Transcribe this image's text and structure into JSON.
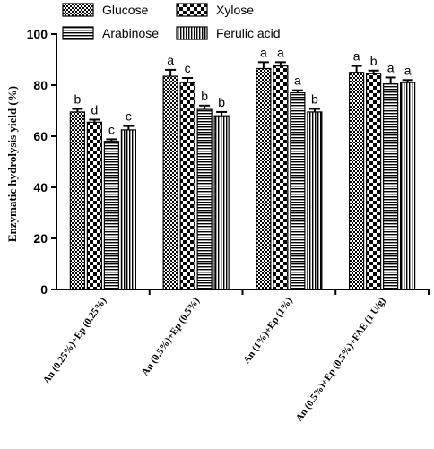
{
  "chart_data": {
    "type": "bar",
    "title": "",
    "xlabel": "",
    "ylabel": "Enzymatic hydrolysis yield (%)",
    "ylim": [
      0,
      100
    ],
    "yticks": [
      0,
      20,
      40,
      60,
      80,
      100
    ],
    "grid": false,
    "legend_position": "top",
    "categories": [
      "An (0.25%)+Ep (0.25%)",
      "An (0.5%)+Ep (0.5%)",
      "An (1%)+Ep (1%)",
      "An (0.5%)+Ep (0.5%)+FAE (1 U/g)"
    ],
    "series": [
      {
        "name": "Glucose",
        "pattern": "checker-fine",
        "values": [
          69.5,
          83.5,
          86.5,
          85.0
        ],
        "errors": [
          1.2,
          2.5,
          2.5,
          2.5
        ],
        "letters": [
          "b",
          "a",
          "a",
          "a"
        ]
      },
      {
        "name": "Xylose",
        "pattern": "checker-coarse",
        "values": [
          65.5,
          81.0,
          87.5,
          84.5
        ],
        "errors": [
          1.0,
          1.8,
          1.5,
          1.2
        ],
        "letters": [
          "d",
          "c",
          "a",
          "b"
        ]
      },
      {
        "name": "Arabinose",
        "pattern": "horizontal",
        "values": [
          58.0,
          70.5,
          77.0,
          80.5
        ],
        "errors": [
          0.8,
          1.5,
          1.0,
          2.5
        ],
        "letters": [
          "c",
          "b",
          "a",
          "a"
        ]
      },
      {
        "name": "Ferulic acid",
        "pattern": "vertical",
        "values": [
          62.5,
          68.0,
          69.5,
          81.0
        ],
        "errors": [
          1.5,
          1.5,
          1.2,
          1.0
        ],
        "letters": [
          "c",
          "b",
          "b",
          "a"
        ]
      }
    ]
  }
}
